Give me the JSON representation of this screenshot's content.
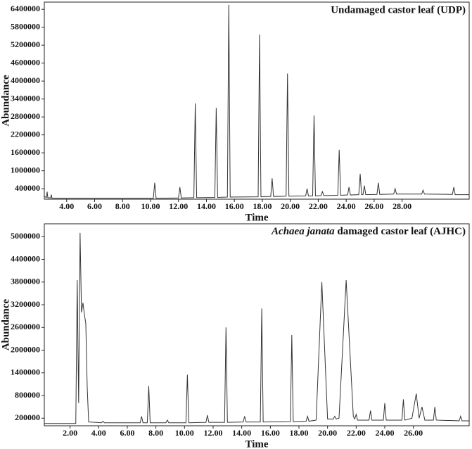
{
  "chart_data": [
    {
      "type": "line",
      "title": "Undamaged castor leaf (UDP)",
      "x_label": "Time",
      "y_label": "Abundance",
      "xlim": [
        2.4,
        32.8
      ],
      "xticks": [
        {
          "value": 4,
          "label": "4.00"
        },
        {
          "value": 6,
          "label": "6.00"
        },
        {
          "value": 8,
          "label": "8.00"
        },
        {
          "value": 10,
          "label": "10.00"
        },
        {
          "value": 12,
          "label": "12.00"
        },
        {
          "value": 14,
          "label": "14.00"
        },
        {
          "value": 16,
          "label": "16.00"
        },
        {
          "value": 18,
          "label": "18.00"
        },
        {
          "value": 20,
          "label": "20.00"
        },
        {
          "value": 22,
          "label": "22.00"
        },
        {
          "value": 24,
          "label": "24.00"
        },
        {
          "value": 26,
          "label": "26.00"
        },
        {
          "value": 28,
          "label": "28.00"
        }
      ],
      "ylim": [
        50000,
        6640000
      ],
      "yticks": [
        400000,
        1000000,
        1600000,
        2200000,
        2800000,
        3400000,
        4000000,
        4600000,
        5200000,
        5800000,
        6400000
      ],
      "series": [
        {
          "color": "#333333",
          "x": [
            2.4,
            2.55,
            2.6,
            2.65,
            2.85,
            2.9,
            2.95,
            10.2,
            10.3,
            10.4,
            12.0,
            12.1,
            12.2,
            13.1,
            13.2,
            13.3,
            14.6,
            14.7,
            14.8,
            15.5,
            15.6,
            15.7,
            17.7,
            17.8,
            17.9,
            18.6,
            18.7,
            18.8,
            19.7,
            19.8,
            19.9,
            21.1,
            21.2,
            21.3,
            21.6,
            21.7,
            21.8,
            22.2,
            22.3,
            22.4,
            23.4,
            23.5,
            23.6,
            24.1,
            24.2,
            24.3,
            24.9,
            25.0,
            25.1,
            25.2,
            25.3,
            25.4,
            26.2,
            26.3,
            26.4,
            27.4,
            27.5,
            27.6,
            29.4,
            29.5,
            29.6,
            31.6,
            31.7,
            31.8,
            32.8
          ],
          "values": [
            150000,
            100000,
            300000,
            100000,
            90000,
            200000,
            80000,
            80000,
            600000,
            80000,
            90000,
            450000,
            90000,
            100000,
            3250000,
            100000,
            110000,
            3100000,
            110000,
            120000,
            6550000,
            120000,
            130000,
            5550000,
            130000,
            140000,
            750000,
            140000,
            150000,
            4250000,
            150000,
            160000,
            400000,
            160000,
            160000,
            2850000,
            160000,
            170000,
            300000,
            170000,
            180000,
            1700000,
            180000,
            190000,
            450000,
            190000,
            200000,
            900000,
            200000,
            200000,
            500000,
            200000,
            210000,
            600000,
            210000,
            220000,
            400000,
            220000,
            220000,
            350000,
            220000,
            210000,
            450000,
            200000,
            200000
          ]
        }
      ]
    },
    {
      "type": "line",
      "title_parts": [
        "Achaea janata",
        " damaged castor leaf (AJHC)"
      ],
      "x_label": "Time",
      "y_label": "Abundance",
      "xlim": [
        0.2,
        29.9
      ],
      "xticks": [
        {
          "value": 2,
          "label": "2.00"
        },
        {
          "value": 4,
          "label": "4.00"
        },
        {
          "value": 6,
          "label": "6.00"
        },
        {
          "value": 8,
          "label": "8.00"
        },
        {
          "value": 10,
          "label": "10.00"
        },
        {
          "value": 12,
          "label": "12.00"
        },
        {
          "value": 14,
          "label": "14.00"
        },
        {
          "value": 16,
          "label": "16.00"
        },
        {
          "value": 18,
          "label": "18.00"
        },
        {
          "value": 20,
          "label": "20.00"
        },
        {
          "value": 22,
          "label": "22.00"
        },
        {
          "value": 24,
          "label": "24.00"
        },
        {
          "value": 26,
          "label": "26.00"
        }
      ],
      "ylim": [
        0,
        5340000
      ],
      "yticks": [
        200000,
        800000,
        1400000,
        2000000,
        2600000,
        3200000,
        3800000,
        4400000,
        5000000
      ],
      "series": [
        {
          "color": "#333333",
          "x": [
            0.2,
            2.4,
            2.5,
            2.6,
            2.7,
            2.8,
            2.9,
            3.0,
            3.1,
            3.2,
            3.3,
            4.2,
            4.3,
            4.4,
            6.9,
            7.0,
            7.1,
            7.4,
            7.5,
            7.6,
            8.7,
            8.8,
            8.9,
            10.1,
            10.2,
            10.3,
            11.5,
            11.6,
            11.7,
            12.8,
            12.9,
            13.0,
            14.1,
            14.2,
            14.3,
            15.3,
            15.4,
            15.5,
            17.4,
            17.5,
            17.6,
            18.5,
            18.6,
            18.7,
            19.2,
            19.6,
            20.0,
            20.4,
            20.5,
            20.6,
            20.8,
            21.3,
            21.8,
            21.9,
            22.0,
            22.1,
            22.9,
            23.0,
            23.1,
            23.9,
            24.0,
            24.1,
            25.2,
            25.3,
            25.4,
            25.9,
            26.2,
            26.4,
            26.6,
            26.8,
            27.4,
            27.5,
            27.6,
            29.2,
            29.3,
            29.4,
            29.9
          ],
          "values": [
            60000,
            60000,
            3850000,
            600000,
            5100000,
            3000000,
            3250000,
            2950000,
            2700000,
            1000000,
            100000,
            80000,
            120000,
            80000,
            80000,
            250000,
            80000,
            80000,
            1050000,
            80000,
            80000,
            150000,
            80000,
            80000,
            1350000,
            80000,
            90000,
            280000,
            90000,
            90000,
            2600000,
            90000,
            100000,
            250000,
            100000,
            100000,
            3100000,
            100000,
            110000,
            2400000,
            110000,
            120000,
            250000,
            120000,
            150000,
            3800000,
            180000,
            180000,
            250000,
            180000,
            200000,
            3850000,
            250000,
            180000,
            300000,
            150000,
            150000,
            400000,
            150000,
            150000,
            600000,
            150000,
            150000,
            700000,
            150000,
            200000,
            850000,
            200000,
            500000,
            150000,
            150000,
            500000,
            150000,
            130000,
            250000,
            130000,
            130000
          ]
        }
      ]
    }
  ]
}
